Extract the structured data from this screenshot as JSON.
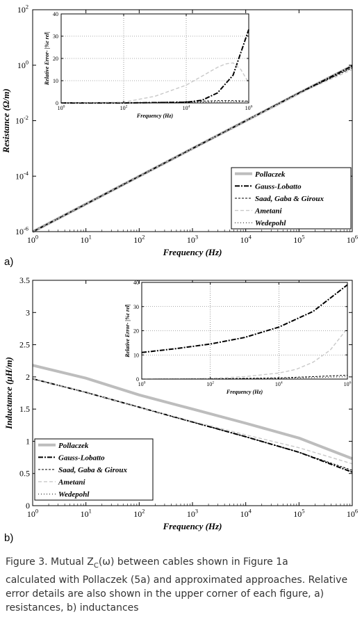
{
  "chart_data": [
    {
      "type": "line",
      "panel_label": "a)",
      "xlabel": "Frequency (Hz)",
      "ylabel": "Resistance (Ω/m)",
      "xscale": "log",
      "yscale": "log",
      "xlim": [
        1,
        1000000
      ],
      "ylim": [
        1e-06,
        100
      ],
      "xtick_labels": [
        "10^0",
        "10^1",
        "10^2",
        "10^3",
        "10^4",
        "10^5",
        "10^6"
      ],
      "ytick_labels": [
        "10^-6",
        "10^-4",
        "10^-2",
        "10^0",
        "10^2"
      ],
      "grid": false,
      "legend_position": "bottom-right",
      "series": [
        {
          "name": "Pollaczek",
          "x": [
            1,
            10,
            100,
            1000,
            10000,
            100000,
            1000000
          ],
          "y": [
            9.9e-07,
            9.9e-06,
            9.9e-05,
            0.00099,
            0.0099,
            0.099,
            0.95
          ]
        },
        {
          "name": "Gauss-Lobatto",
          "x": [
            1,
            10,
            100,
            1000,
            10000,
            100000,
            1000000
          ],
          "y": [
            9.9e-07,
            9.9e-06,
            9.9e-05,
            0.00099,
            0.0099,
            0.099,
            0.94
          ]
        },
        {
          "name": "Saad, Gaba & Giroux",
          "x": [
            1,
            10,
            100,
            1000,
            10000,
            100000,
            1000000
          ],
          "y": [
            9.9e-07,
            9.9e-06,
            9.9e-05,
            0.00099,
            0.0099,
            0.098,
            0.8
          ]
        },
        {
          "name": "Ametani",
          "x": [
            1,
            10,
            100,
            1000,
            10000,
            100000,
            1000000
          ],
          "y": [
            9.9e-07,
            9.9e-06,
            9.9e-05,
            0.00099,
            0.0098,
            0.095,
            0.7
          ]
        },
        {
          "name": "Wedepohl",
          "x": [
            1,
            10,
            100,
            1000,
            10000,
            100000,
            1000000
          ],
          "y": [
            9.9e-07,
            9.9e-06,
            9.9e-05,
            0.00099,
            0.0099,
            0.099,
            0.82
          ]
        }
      ],
      "inset": {
        "xlabel": "Frequency (Hz)",
        "ylabel": "Relative Error- |%ε rel|",
        "xscale": "log",
        "xlim": [
          1,
          1000000
        ],
        "ylim": [
          0,
          40
        ],
        "xtick_labels": [
          "10^0",
          "10^2",
          "10^4",
          "10^6"
        ],
        "yticks": [
          0,
          10,
          20,
          30,
          40
        ],
        "grid": true,
        "series": [
          {
            "name": "Gauss-Lobatto",
            "x": [
              1,
              100,
              10000,
              31623,
              100000,
              316228,
              1000000
            ],
            "y": [
              0,
              0,
              0.3,
              1.2,
              4.5,
              12.5,
              33
            ]
          },
          {
            "name": "Saad, Gaba & Giroux",
            "x": [
              1,
              100,
              10000,
              31623,
              100000,
              316228,
              1000000
            ],
            "y": [
              0,
              0,
              0.5,
              0.8,
              1,
              1,
              0.8
            ]
          },
          {
            "name": "Ametani",
            "x": [
              1,
              100,
              1000,
              10000,
              31623,
              100000,
              177828,
              316228,
              562341,
              1000000
            ],
            "y": [
              0,
              0.3,
              3,
              8,
              12,
              16,
              17.5,
              18,
              15,
              9
            ]
          },
          {
            "name": "Wedepohl",
            "x": [
              1,
              100,
              10000,
              100000,
              1000000
            ],
            "y": [
              0,
              0,
              0.2,
              0.5,
              0.7
            ]
          }
        ]
      }
    },
    {
      "type": "line",
      "panel_label": "b)",
      "xlabel": "Frequency (Hz)",
      "ylabel": "Inductance (μH/m)",
      "xscale": "log",
      "xlim": [
        1,
        1000000
      ],
      "ylim": [
        0,
        3.5
      ],
      "xtick_labels": [
        "10^0",
        "10^1",
        "10^2",
        "10^3",
        "10^4",
        "10^5",
        "10^6"
      ],
      "yticks": [
        0,
        0.5,
        1,
        1.5,
        2,
        2.5,
        3,
        3.5
      ],
      "grid": false,
      "legend_position": "bottom-left",
      "series": [
        {
          "name": "Pollaczek",
          "x": [
            1,
            10,
            100,
            1000,
            10000,
            100000,
            1000000
          ],
          "y": [
            2.18,
            1.98,
            1.72,
            1.5,
            1.28,
            1.05,
            0.73
          ]
        },
        {
          "name": "Gauss-Lobatto",
          "x": [
            1,
            10,
            100,
            1000,
            10000,
            100000,
            1000000
          ],
          "y": [
            1.97,
            1.76,
            1.53,
            1.3,
            1.07,
            0.83,
            0.52
          ]
        },
        {
          "name": "Saad, Gaba & Giroux",
          "x": [
            1,
            10,
            100,
            1000,
            10000,
            100000,
            1000000
          ],
          "y": [
            1.97,
            1.76,
            1.53,
            1.3,
            1.07,
            0.83,
            0.55
          ]
        },
        {
          "name": "Ametani",
          "x": [
            1,
            10,
            100,
            1000,
            10000,
            100000,
            1000000
          ],
          "y": [
            1.97,
            1.76,
            1.53,
            1.31,
            1.1,
            0.9,
            0.65
          ]
        },
        {
          "name": "Wedepohl",
          "x": [
            1,
            10,
            100,
            1000,
            10000,
            100000,
            1000000
          ],
          "y": [
            1.97,
            1.76,
            1.53,
            1.3,
            1.07,
            0.83,
            0.53
          ]
        }
      ],
      "inset": {
        "xlabel": "Frequency (Hz)",
        "ylabel": "Relative Error- |%ε rel|",
        "xscale": "log",
        "xlim": [
          1,
          1000000
        ],
        "ylim": [
          0,
          40
        ],
        "xtick_labels": [
          "10^0",
          "10^2",
          "10^4",
          "10^6"
        ],
        "yticks": [
          0,
          10,
          20,
          30,
          40
        ],
        "grid": true,
        "series": [
          {
            "name": "Gauss-Lobatto",
            "x": [
              1,
              10,
              100,
              1000,
              10000,
              100000,
              1000000
            ],
            "y": [
              11,
              12.6,
              14.5,
              17.2,
              21.5,
              28,
              39
            ]
          },
          {
            "name": "Saad, Gaba & Giroux",
            "x": [
              1,
              100,
              10000,
              100000,
              1000000
            ],
            "y": [
              0,
              0.1,
              0.5,
              1,
              1.6
            ]
          },
          {
            "name": "Ametani",
            "x": [
              1,
              100,
              1000,
              10000,
              31623,
              100000,
              316228,
              1000000
            ],
            "y": [
              0,
              0.3,
              1,
              2.5,
              4,
              7,
              12,
              21
            ]
          },
          {
            "name": "Wedepohl",
            "x": [
              1,
              100,
              10000,
              100000,
              1000000
            ],
            "y": [
              0,
              0.1,
              0.3,
              0.6,
              1.0
            ]
          }
        ]
      }
    }
  ],
  "styles": {
    "Pollaczek": {
      "color": "#bdbdbd",
      "width": 4,
      "dash": ""
    },
    "Gauss-Lobatto": {
      "color": "#000000",
      "width": 2,
      "dash": "7,2,2,2"
    },
    "Saad, Gaba & Giroux": {
      "color": "#000000",
      "width": 1,
      "dash": "3,2"
    },
    "Ametani": {
      "color": "#c8c8c8",
      "width": 1.4,
      "dash": "5,3"
    },
    "Wedepohl": {
      "color": "#000000",
      "width": 1,
      "dash": "1,3"
    }
  },
  "caption": {
    "line1": "Figure 3.  Mutual Z",
    "sub": "C",
    "line1b": "(ω) between cables shown in Figure 1a",
    "rest": "calculated with Pollaczek (5a) and approximated approaches. Relative error details are also shown in the upper corner of each figure, a) resistances, b) inductances"
  }
}
